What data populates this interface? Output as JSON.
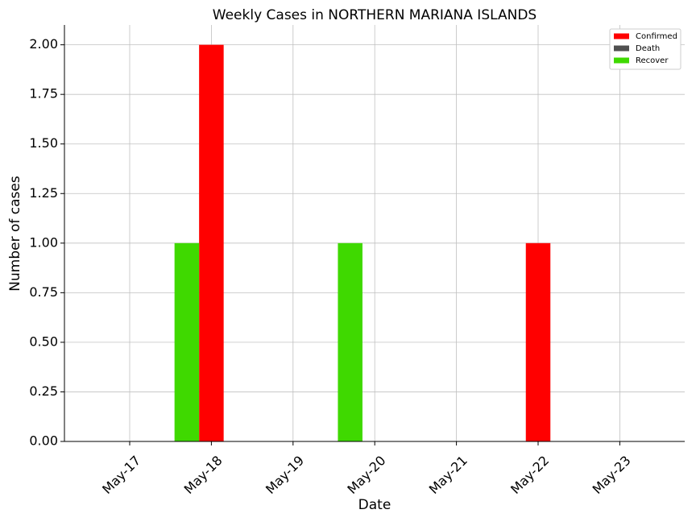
{
  "chart_data": {
    "type": "bar",
    "title": "Weekly Cases in NORTHERN MARIANA ISLANDS",
    "xlabel": "Date",
    "ylabel": "Number of cases",
    "categories": [
      "May-17",
      "May-18",
      "May-19",
      "May-20",
      "May-21",
      "May-22",
      "May-23"
    ],
    "series": [
      {
        "name": "Confirmed",
        "color": "#ff0000",
        "values": [
          0,
          2,
          0,
          0,
          0,
          1,
          0
        ]
      },
      {
        "name": "Death",
        "color": "#505050",
        "values": [
          0,
          0,
          0,
          0,
          0,
          0,
          0
        ]
      },
      {
        "name": "Recover",
        "color": "#3fd900",
        "values": [
          0,
          1,
          0,
          1,
          0,
          0,
          0
        ]
      }
    ],
    "ylim": [
      0,
      2.1
    ],
    "yticks": [
      {
        "value": 0,
        "label": "0.00"
      },
      {
        "value": 0.25,
        "label": "0.25"
      },
      {
        "value": 0.5,
        "label": "0.50"
      },
      {
        "value": 0.75,
        "label": "0.75"
      },
      {
        "value": 1,
        "label": "1.00"
      },
      {
        "value": 1.25,
        "label": "1.25"
      },
      {
        "value": 1.5,
        "label": "1.50"
      },
      {
        "value": 1.75,
        "label": "1.75"
      },
      {
        "value": 2,
        "label": "2.00"
      }
    ],
    "grid": true,
    "legend": "upper right"
  }
}
